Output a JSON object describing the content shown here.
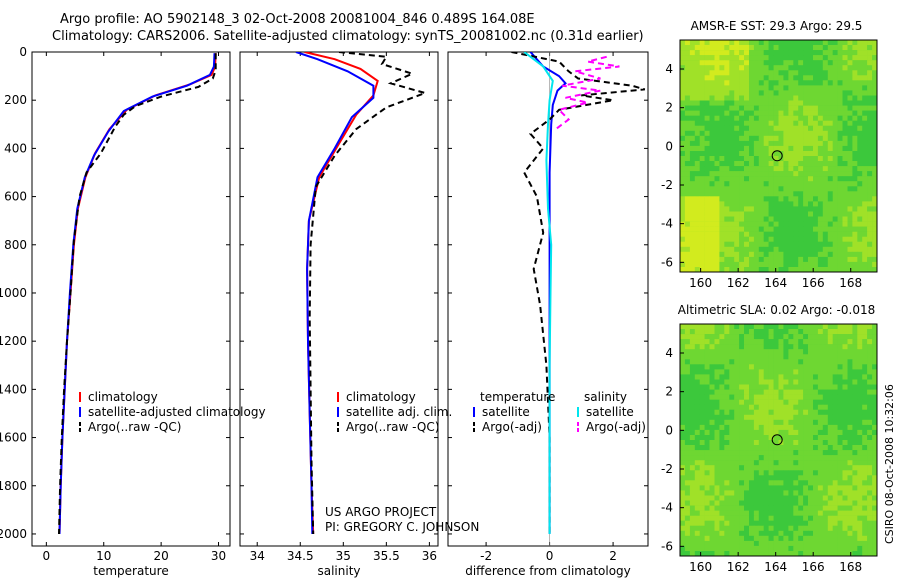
{
  "header": {
    "line1": "Argo profile: AO 5902148_3 02-Oct-2008 20081004_846 0.489S 164.08E",
    "line2": "Climatology: CARS2006. Satellite-adjusted climatology: synTS_20081002.nc (0.31d earlier)"
  },
  "credits": {
    "project": "US ARGO PROJECT",
    "pi": "PI: GREGORY C. JOHNSON",
    "stamp": "CSIRO 08-Oct-2008 10:32:06"
  },
  "colors": {
    "climatology": "#ff0000",
    "satellite_temp": "#0000ff",
    "argo": "#000000",
    "satellite_sal": "#00e5ee",
    "argo_sal": "#ff00ff",
    "map_base": "#3cc83c"
  },
  "chart_data": [
    {
      "id": "temp",
      "type": "line",
      "xlabel": "temperature",
      "ylabel": "",
      "xlim": [
        -2.5,
        32
      ],
      "ylim": [
        2050,
        0
      ],
      "xticks": [
        0,
        10,
        20,
        30
      ],
      "yticks": [
        0,
        200,
        400,
        600,
        800,
        1000,
        1200,
        1400,
        1600,
        1800,
        2000
      ],
      "legend": {
        "placement": "lower-right",
        "entries": [
          "climatology",
          "satellite-adjusted climatology",
          "Argo(..raw -QC)"
        ]
      },
      "series": [
        {
          "name": "climatology",
          "color": "#ff0000",
          "dash": "",
          "points": [
            [
              29.5,
              5
            ],
            [
              29.4,
              60
            ],
            [
              28.8,
              95
            ],
            [
              25,
              135
            ],
            [
              19,
              180
            ],
            [
              14,
              240
            ],
            [
              11,
              320
            ],
            [
              8.5,
              420
            ],
            [
              6.8,
              520
            ],
            [
              5.5,
              650
            ],
            [
              4.8,
              800
            ],
            [
              4.2,
              1000
            ],
            [
              3.6,
              1200
            ],
            [
              3.2,
              1400
            ],
            [
              2.8,
              1600
            ],
            [
              2.5,
              1800
            ],
            [
              2.3,
              2000
            ]
          ]
        },
        {
          "name": "satellite-adjusted climatology",
          "color": "#0000ff",
          "dash": "",
          "points": [
            [
              29.3,
              5
            ],
            [
              29.2,
              60
            ],
            [
              28.5,
              95
            ],
            [
              24.5,
              140
            ],
            [
              18.5,
              185
            ],
            [
              13.5,
              245
            ],
            [
              10.8,
              330
            ],
            [
              8.3,
              430
            ],
            [
              6.7,
              520
            ],
            [
              5.4,
              650
            ],
            [
              4.7,
              800
            ],
            [
              4.1,
              1000
            ],
            [
              3.6,
              1200
            ],
            [
              3.2,
              1400
            ],
            [
              2.8,
              1600
            ],
            [
              2.5,
              1800
            ],
            [
              2.3,
              2000
            ]
          ]
        },
        {
          "name": "Argo(..raw -QC)",
          "color": "#000000",
          "dash": "6,4",
          "points": [
            [
              29.5,
              5
            ],
            [
              29.5,
              75
            ],
            [
              29,
              110
            ],
            [
              26.5,
              145
            ],
            [
              20,
              185
            ],
            [
              15.5,
              225
            ],
            [
              13.5,
              260
            ],
            [
              12,
              310
            ],
            [
              9.5,
              420
            ],
            [
              7,
              500
            ],
            [
              5.8,
              600
            ],
            [
              4.8,
              780
            ],
            [
              4.2,
              1000
            ],
            [
              3.6,
              1200
            ],
            [
              3.1,
              1400
            ],
            [
              2.7,
              1600
            ],
            [
              2.4,
              1800
            ],
            [
              2.2,
              2000
            ]
          ]
        }
      ]
    },
    {
      "id": "sal",
      "type": "line",
      "xlabel": "salinity",
      "ylabel": "",
      "xlim": [
        33.8,
        36.1
      ],
      "ylim": [
        2050,
        0
      ],
      "xticks": [
        34,
        34.5,
        35,
        35.5,
        36
      ],
      "xticklabels": [
        "34",
        "34.5",
        "35",
        "35.5",
        "36"
      ],
      "yticks": [],
      "legend": {
        "placement": "lower-right",
        "entries": [
          "climatology",
          "satellite adj. clim.",
          "Argo(..raw -QC)"
        ]
      },
      "series": [
        {
          "name": "climatology",
          "color": "#ff0000",
          "dash": "",
          "points": [
            [
              34.55,
              0
            ],
            [
              34.9,
              30
            ],
            [
              35.2,
              70
            ],
            [
              35.4,
              120
            ],
            [
              35.35,
              180
            ],
            [
              35.15,
              260
            ],
            [
              34.95,
              380
            ],
            [
              34.72,
              520
            ],
            [
              34.6,
              700
            ],
            [
              34.58,
              900
            ],
            [
              34.59,
              1200
            ],
            [
              34.61,
              1500
            ],
            [
              34.63,
              1800
            ],
            [
              34.65,
              2000
            ]
          ]
        },
        {
          "name": "satellite adj. clim.",
          "color": "#0000ff",
          "dash": "",
          "points": [
            [
              34.45,
              0
            ],
            [
              34.7,
              30
            ],
            [
              35.05,
              80
            ],
            [
              35.35,
              140
            ],
            [
              35.35,
              190
            ],
            [
              35.1,
              270
            ],
            [
              34.9,
              400
            ],
            [
              34.7,
              520
            ],
            [
              34.6,
              700
            ],
            [
              34.58,
              900
            ],
            [
              34.59,
              1200
            ],
            [
              34.61,
              1500
            ],
            [
              34.63,
              1800
            ],
            [
              34.64,
              2000
            ]
          ]
        },
        {
          "name": "Argo(..raw -QC)",
          "color": "#000000",
          "dash": "6,4",
          "points": [
            [
              34.95,
              0
            ],
            [
              35.5,
              20
            ],
            [
              35.45,
              50
            ],
            [
              35.8,
              90
            ],
            [
              35.55,
              130
            ],
            [
              35.95,
              170
            ],
            [
              35.5,
              230
            ],
            [
              35.15,
              320
            ],
            [
              34.9,
              430
            ],
            [
              34.68,
              560
            ],
            [
              34.62,
              800
            ],
            [
              34.61,
              1100
            ],
            [
              34.62,
              1400
            ],
            [
              34.63,
              1700
            ],
            [
              34.65,
              2000
            ]
          ]
        }
      ]
    },
    {
      "id": "diff",
      "type": "line",
      "xlabel": "difference from climatology",
      "ylabel": "",
      "xlim": [
        -3.2,
        3.1
      ],
      "ylim": [
        2050,
        0
      ],
      "xticks": [
        -2,
        0,
        2
      ],
      "yticks": [],
      "legend": {
        "placement": "lower-right",
        "groups": [
          "temperature",
          "salinity"
        ],
        "entries": [
          "satellite",
          "Argo(-adj)",
          "satellite",
          "Argo(-adj)"
        ]
      },
      "series": [
        {
          "name": "temperature satellite",
          "color": "#0000ff",
          "dash": "",
          "points": [
            [
              -0.6,
              0
            ],
            [
              -0.2,
              60
            ],
            [
              0.3,
              100
            ],
            [
              0.5,
              130
            ],
            [
              0.25,
              160
            ],
            [
              0.1,
              220
            ],
            [
              0.05,
              300
            ],
            [
              0,
              500
            ],
            [
              0,
              800
            ],
            [
              0,
              1200
            ],
            [
              0,
              1600
            ],
            [
              0,
              2000
            ]
          ]
        },
        {
          "name": "temperature Argo(-adj)",
          "color": "#000000",
          "dash": "6,4",
          "points": [
            [
              -1.2,
              0
            ],
            [
              0.3,
              40
            ],
            [
              0.6,
              80
            ],
            [
              0.9,
              110
            ],
            [
              2.6,
              140
            ],
            [
              3.0,
              155
            ],
            [
              1.0,
              180
            ],
            [
              2.0,
              200
            ],
            [
              0.3,
              240
            ],
            [
              0.0,
              280
            ],
            [
              -0.6,
              340
            ],
            [
              -0.2,
              400
            ],
            [
              -0.8,
              500
            ],
            [
              -0.4,
              600
            ],
            [
              -0.2,
              750
            ],
            [
              -0.5,
              900
            ],
            [
              -0.3,
              1050
            ],
            [
              -0.1,
              1300
            ],
            [
              0,
              1600
            ],
            [
              0,
              2000
            ]
          ]
        },
        {
          "name": "salinity satellite",
          "color": "#00e5ee",
          "dash": "",
          "points": [
            [
              -0.8,
              0
            ],
            [
              -0.2,
              60
            ],
            [
              0.1,
              120
            ],
            [
              0,
              200
            ],
            [
              -0.05,
              300
            ],
            [
              -0.1,
              450
            ],
            [
              -0.05,
              650
            ],
            [
              0.05,
              800
            ],
            [
              0.03,
              1000
            ],
            [
              0,
              1300
            ],
            [
              0,
              1600
            ],
            [
              0,
              2000
            ]
          ]
        },
        {
          "name": "salinity Argo(-adj)",
          "color": "#ff00ff",
          "dash": "6,4",
          "points": [
            [
              1.8,
              20
            ],
            [
              1.2,
              40
            ],
            [
              2.2,
              60
            ],
            [
              0.8,
              80
            ],
            [
              1.6,
              110
            ],
            [
              0.4,
              140
            ],
            [
              1.6,
              160
            ],
            [
              0.5,
              190
            ],
            [
              1.2,
              210
            ],
            [
              0.3,
              240
            ],
            [
              0.6,
              280
            ],
            [
              0.2,
              320
            ]
          ]
        }
      ]
    },
    {
      "id": "sst_map",
      "type": "heatmap",
      "title": "AMSR-E SST: 29.3  Argo: 29.5",
      "xlim": [
        158.9,
        169.4
      ],
      "ylim": [
        -6.5,
        5.5
      ],
      "xticks": [
        160,
        162,
        164,
        166,
        168
      ],
      "yticks": [
        4,
        2,
        0,
        -2,
        -4,
        -6
      ],
      "marker": {
        "lon": 164.08,
        "lat": -0.489
      }
    },
    {
      "id": "sla_map",
      "type": "heatmap",
      "title": "Altimetric SLA: 0.02  Argo: -0.018",
      "xlim": [
        158.9,
        169.4
      ],
      "ylim": [
        -6.5,
        5.5
      ],
      "xticks": [
        160,
        162,
        164,
        166,
        168
      ],
      "yticks": [
        4,
        2,
        0,
        -2,
        -4,
        -6
      ],
      "marker": {
        "lon": 164.08,
        "lat": -0.489
      }
    }
  ]
}
